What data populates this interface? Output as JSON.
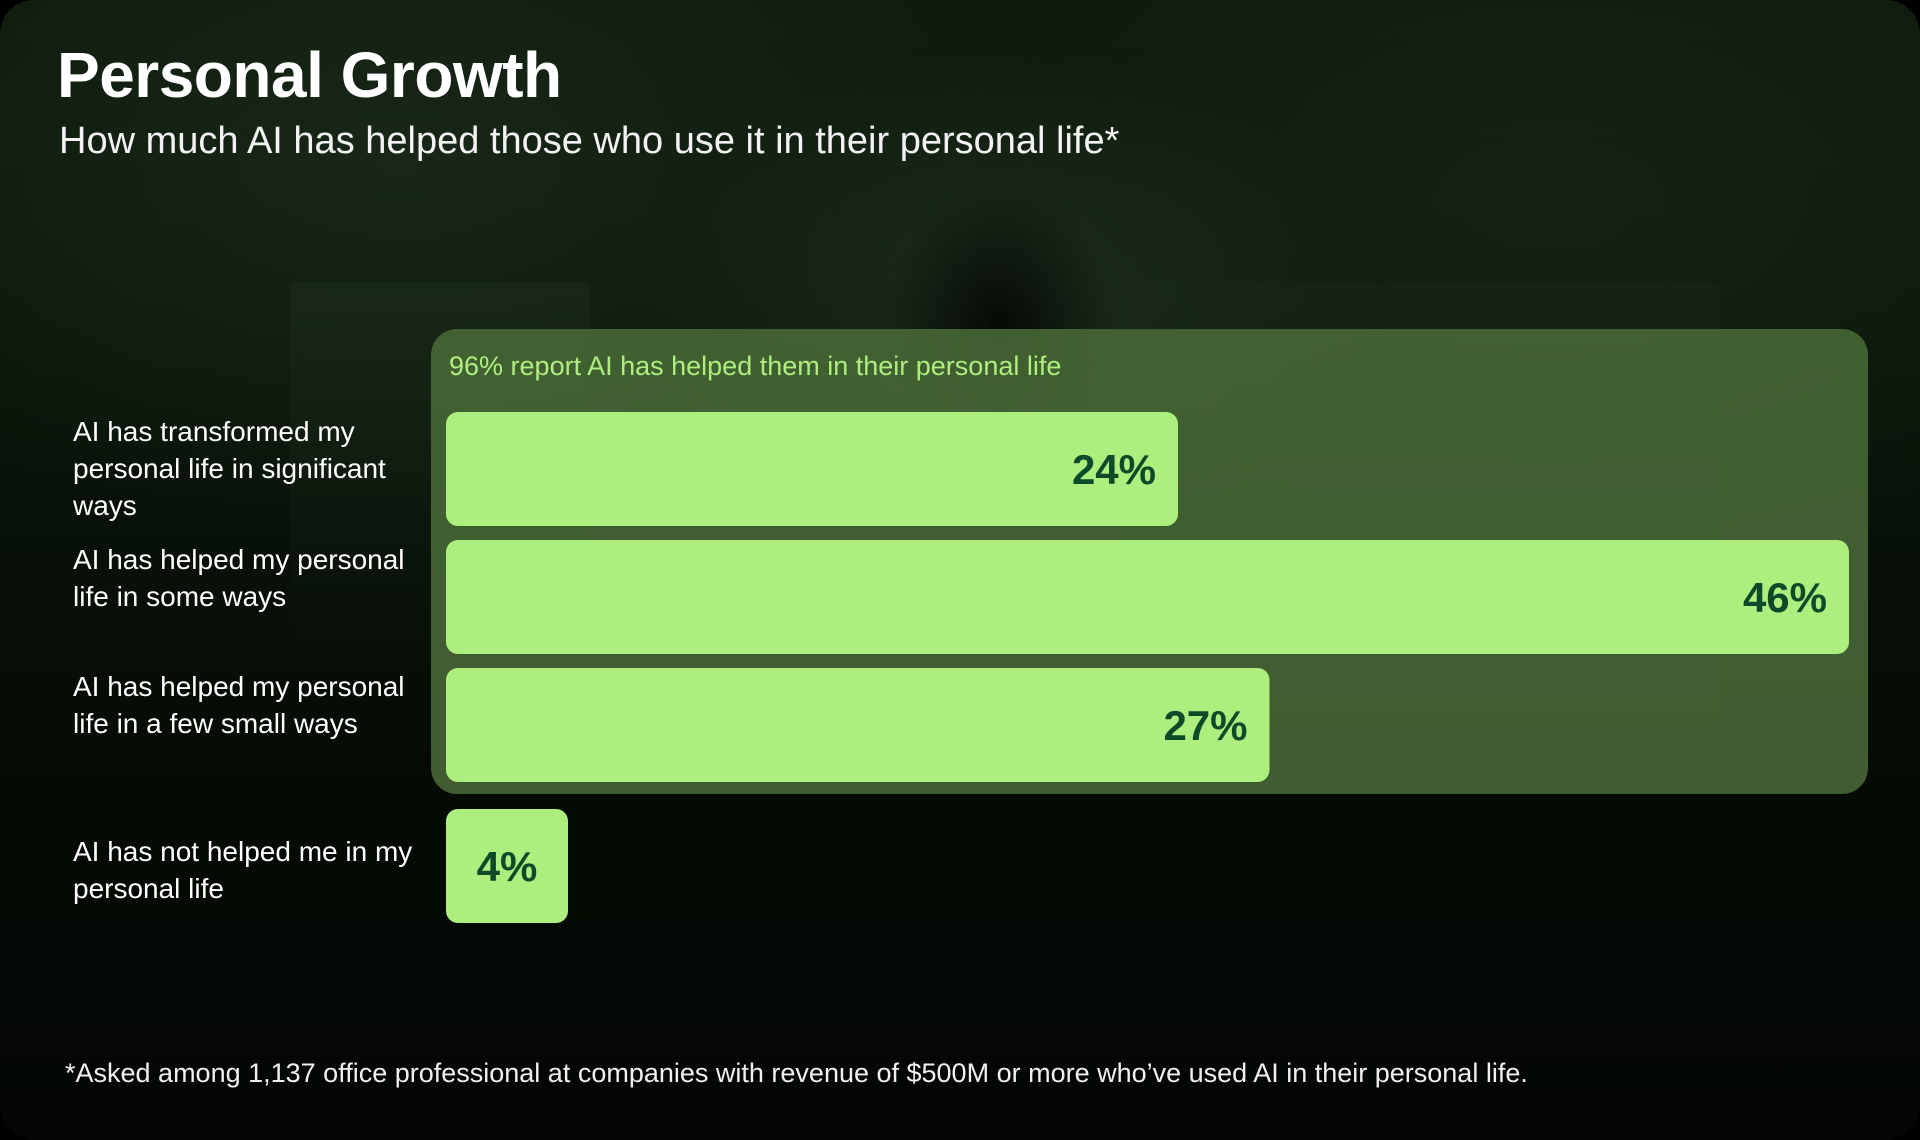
{
  "title": "Personal Growth",
  "subtitle": "How much AI has helped those who use it in their personal life*",
  "footnote": "*Asked among 1,137 office professional at companies with revenue of $500M or more who’ve used AI in their personal life.",
  "colors": {
    "bar": "#aeee7e",
    "bar_label": "#0d4a2a",
    "highlight_panel": "#4a6c38",
    "highlight_text": "#aeee7e"
  },
  "chart_data": {
    "type": "bar",
    "orientation": "horizontal",
    "title": "Personal Growth",
    "subtitle": "How much AI has helped those who use it in their personal life*",
    "categories": [
      "AI has transformed my personal life in significant ways",
      "AI has helped my personal life in some ways",
      "AI has helped my personal life in a few small ways",
      "AI has not helped me in my personal life"
    ],
    "values": [
      24,
      46,
      27,
      4
    ],
    "value_labels": [
      "24%",
      "46%",
      "27%",
      "4%"
    ],
    "unit": "%",
    "xlim": [
      0,
      46
    ],
    "grid": false,
    "legend": "none",
    "annotation": {
      "text": "96% report AI has helped them in their personal life",
      "groups_categories": [
        0,
        1,
        2
      ]
    }
  }
}
